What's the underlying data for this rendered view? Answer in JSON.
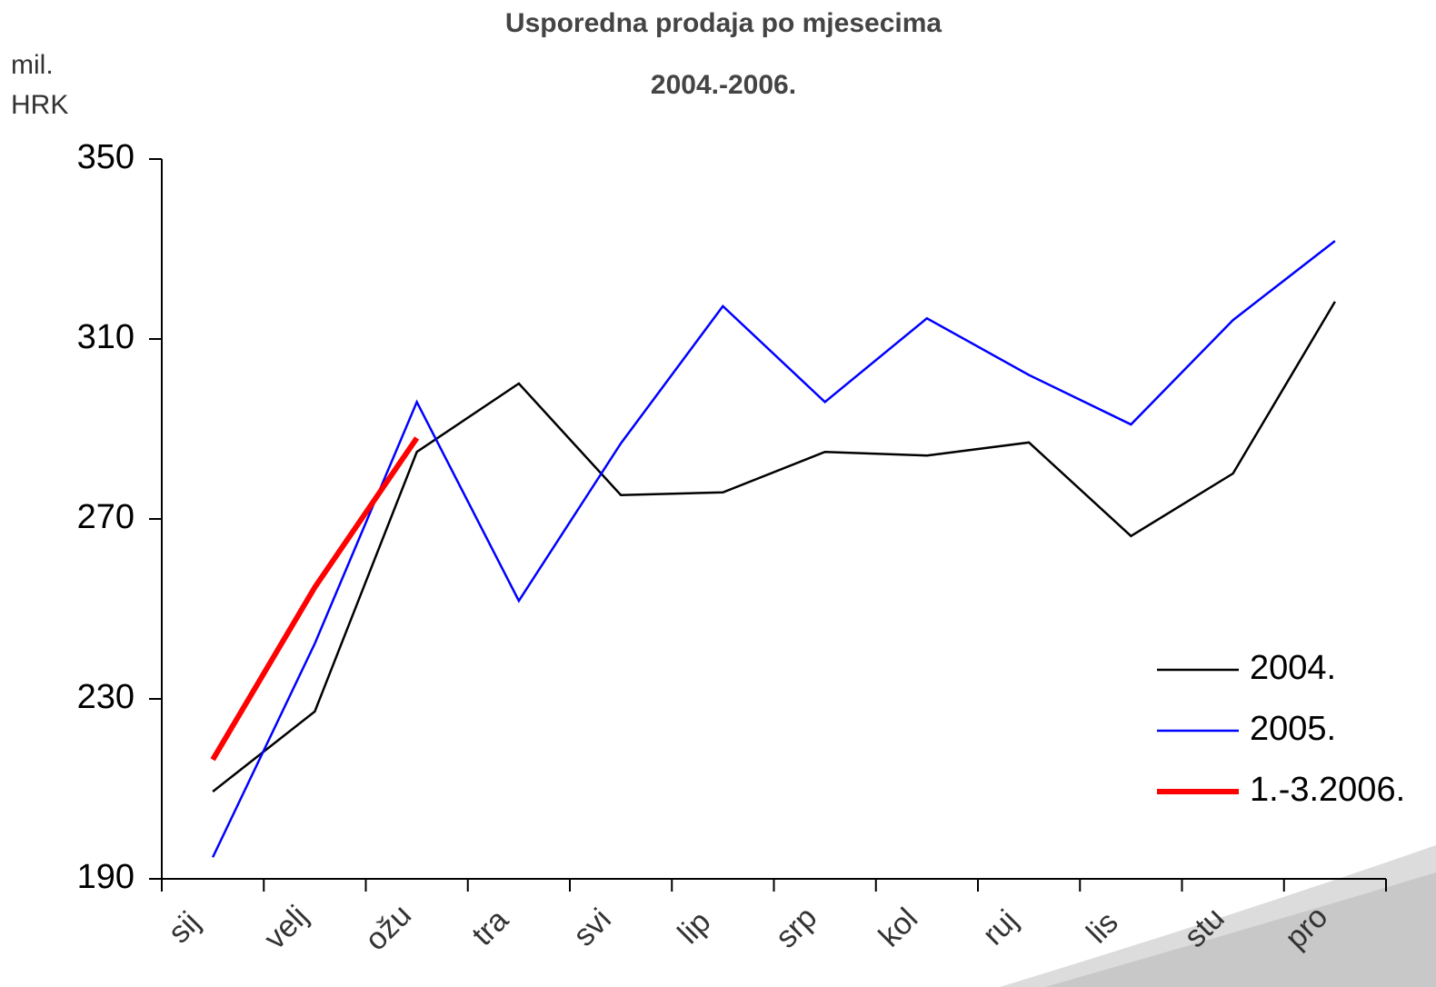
{
  "chart_data": {
    "type": "line",
    "title": "Usporedna prodaja po mjesecima",
    "subtitle": "2004.-2006.",
    "y_label": "mil.\nHRK",
    "categories": [
      "sij",
      "velj",
      "ožu",
      "tra",
      "svi",
      "lip",
      "srp",
      "kol",
      "ruj",
      "lis",
      "stu",
      "pro"
    ],
    "series": [
      {
        "name": "2004.",
        "color": "#000000",
        "width": 2.5,
        "values": [
          209.4,
          227.2,
          284.9,
          300.1,
          275.3,
          275.9,
          284.9,
          284.1,
          287,
          266.2,
          280.1,
          318.3
        ]
      },
      {
        "name": "2005.",
        "color": "#0000ff",
        "width": 2.5,
        "values": [
          194.8,
          242.3,
          296,
          251.8,
          286.8,
          317.3,
          296,
          314.6,
          302,
          291,
          314.2,
          331.8
        ]
      },
      {
        "name": "1.-3.2006.",
        "color": "#ff0000",
        "width": 6,
        "values": [
          216.5,
          254.8,
          288,
          null,
          null,
          null,
          null,
          null,
          null,
          null,
          null,
          null
        ]
      }
    ],
    "ylim": [
      190,
      350
    ],
    "yticks": [
      190,
      230,
      270,
      310,
      350
    ],
    "grid": false,
    "legend": "lower right"
  }
}
